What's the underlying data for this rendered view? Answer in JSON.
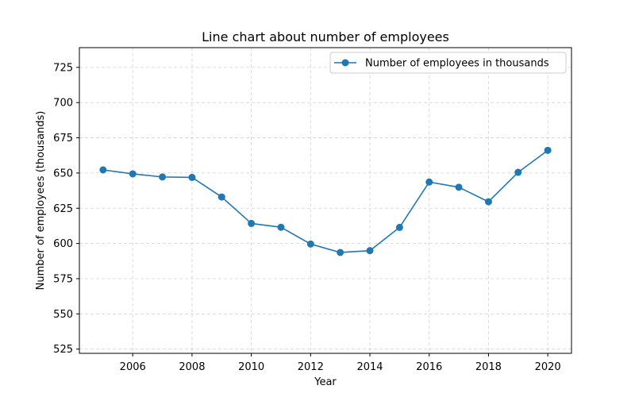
{
  "chart_data": {
    "type": "line",
    "title": "Line chart about number of employees",
    "xlabel": "Year",
    "ylabel": "Number of employees (thousands)",
    "x": [
      2005,
      2006,
      2007,
      2008,
      2009,
      2010,
      2011,
      2012,
      2013,
      2014,
      2015,
      2016,
      2017,
      2018,
      2019,
      2020
    ],
    "series": [
      {
        "name": "Number of employees in thousands",
        "color": "#1f77b4",
        "values": [
          652.2,
          649.4,
          647.2,
          646.9,
          633.0,
          614.2,
          611.5,
          599.6,
          593.6,
          594.9,
          611.4,
          643.6,
          639.9,
          629.6,
          650.5,
          666.1
        ]
      }
    ],
    "xlim": [
      2004.2,
      2020.8
    ],
    "ylim": [
      522,
      739
    ],
    "xticks": [
      "2006",
      "2008",
      "2010",
      "2012",
      "2014",
      "2016",
      "2018",
      "2020"
    ],
    "yticks": [
      "525",
      "550",
      "575",
      "600",
      "625",
      "650",
      "675",
      "700",
      "725"
    ],
    "grid": true,
    "legend_position": "top-right"
  }
}
